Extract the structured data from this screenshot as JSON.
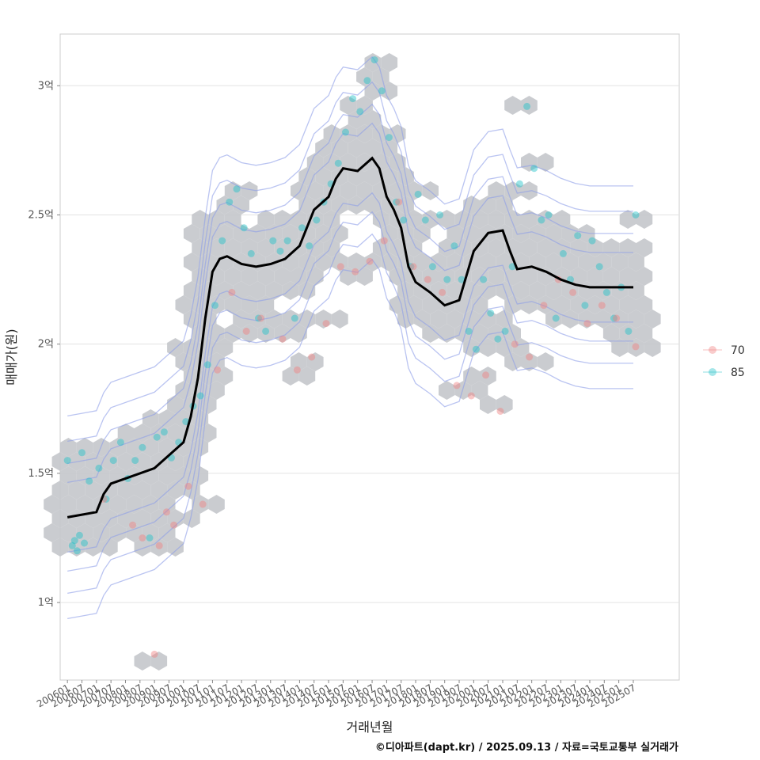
{
  "chart_data": {
    "type": "scatter",
    "xlabel": "거래년월",
    "ylabel": "매매가(원)",
    "caption": "©디아파트(dapt.kr) / 2025.09.13 / 자료=국토교통부 실거래가",
    "x_ticks": [
      "200601",
      "200607",
      "200701",
      "200707",
      "200801",
      "200807",
      "200901",
      "200907",
      "201001",
      "201007",
      "201101",
      "201107",
      "201201",
      "201207",
      "201301",
      "201307",
      "201401",
      "201407",
      "201501",
      "201507",
      "201601",
      "201607",
      "201701",
      "201707",
      "201801",
      "201807",
      "201901",
      "201907",
      "202001",
      "202007",
      "202101",
      "202107",
      "202201",
      "202207",
      "202301",
      "202307",
      "202401",
      "202407",
      "202501",
      "202507"
    ],
    "xlim": [
      "2005-10",
      "2027-02"
    ],
    "ylim": [
      0.7,
      3.2
    ],
    "y_ticks": [
      {
        "value": 1.0,
        "label": "1억"
      },
      {
        "value": 1.5,
        "label": "1.5억"
      },
      {
        "value": 2.0,
        "label": "2억"
      },
      {
        "value": 2.5,
        "label": "2.5억"
      },
      {
        "value": 3.0,
        "label": "3억"
      }
    ],
    "grid": true,
    "legend_position": "right",
    "legend": [
      {
        "name": "70",
        "color": "#F08080"
      },
      {
        "name": "85",
        "color": "#20C0C8"
      }
    ],
    "colors": {
      "hexbin": "#C4C6CB",
      "contour": "#8C9DE8",
      "trend": "#000000",
      "series_70": "#F08080",
      "series_85": "#20C0C8"
    },
    "trend_line": {
      "x": [
        "2006-01",
        "2006-07",
        "2007-01",
        "2007-04",
        "2007-07",
        "2008-01",
        "2008-07",
        "2009-01",
        "2009-07",
        "2010-01",
        "2010-04",
        "2010-07",
        "2010-10",
        "2011-01",
        "2011-04",
        "2011-07",
        "2012-01",
        "2012-07",
        "2013-01",
        "2013-07",
        "2014-01",
        "2014-07",
        "2015-01",
        "2015-04",
        "2015-07",
        "2016-01",
        "2016-07",
        "2016-10",
        "2017-01",
        "2017-04",
        "2017-07",
        "2017-10",
        "2018-01",
        "2018-07",
        "2019-01",
        "2019-07",
        "2020-01",
        "2020-07",
        "2021-01",
        "2021-04",
        "2021-07",
        "2022-01",
        "2022-07",
        "2023-01",
        "2023-07",
        "2024-01",
        "2024-07",
        "2025-01",
        "2025-07"
      ],
      "y": [
        1.33,
        1.34,
        1.35,
        1.42,
        1.46,
        1.48,
        1.5,
        1.52,
        1.57,
        1.62,
        1.72,
        1.87,
        2.1,
        2.28,
        2.33,
        2.34,
        2.31,
        2.3,
        2.31,
        2.33,
        2.38,
        2.52,
        2.57,
        2.64,
        2.68,
        2.67,
        2.72,
        2.68,
        2.57,
        2.52,
        2.45,
        2.3,
        2.24,
        2.2,
        2.15,
        2.17,
        2.36,
        2.43,
        2.44,
        2.36,
        2.29,
        2.3,
        2.28,
        2.25,
        2.23,
        2.22,
        2.22,
        2.22,
        2.22
      ]
    },
    "series": [
      {
        "name": "85",
        "x": [
          "2006-01",
          "2006-03",
          "2006-04",
          "2006-05",
          "2006-06",
          "2006-07",
          "2006-08",
          "2006-10",
          "2007-02",
          "2007-05",
          "2007-08",
          "2007-11",
          "2008-02",
          "2008-05",
          "2008-08",
          "2008-11",
          "2009-02",
          "2009-05",
          "2009-08",
          "2009-11",
          "2010-02",
          "2010-05",
          "2010-08",
          "2010-11",
          "2011-02",
          "2011-05",
          "2011-08",
          "2011-11",
          "2012-02",
          "2012-05",
          "2012-08",
          "2012-11",
          "2013-02",
          "2013-05",
          "2013-08",
          "2013-11",
          "2014-02",
          "2014-05",
          "2014-08",
          "2014-11",
          "2015-02",
          "2015-05",
          "2015-08",
          "2015-11",
          "2016-02",
          "2016-05",
          "2016-08",
          "2016-11",
          "2017-02",
          "2017-05",
          "2017-08",
          "2017-11",
          "2018-02",
          "2018-05",
          "2018-08",
          "2018-11",
          "2019-02",
          "2019-05",
          "2019-08",
          "2019-11",
          "2020-02",
          "2020-05",
          "2020-08",
          "2020-11",
          "2021-02",
          "2021-05",
          "2021-08",
          "2021-11",
          "2022-02",
          "2022-05",
          "2022-08",
          "2022-11",
          "2023-02",
          "2023-05",
          "2023-08",
          "2023-11",
          "2024-02",
          "2024-05",
          "2024-08",
          "2024-11",
          "2025-02",
          "2025-05",
          "2025-08"
        ],
        "y": [
          1.55,
          1.22,
          1.24,
          1.2,
          1.26,
          1.58,
          1.23,
          1.47,
          1.52,
          1.4,
          1.55,
          1.62,
          1.48,
          1.55,
          1.6,
          1.25,
          1.64,
          1.66,
          1.56,
          1.62,
          1.7,
          1.76,
          1.8,
          1.92,
          2.15,
          2.4,
          2.55,
          2.6,
          2.45,
          2.35,
          2.1,
          2.05,
          2.4,
          2.36,
          2.4,
          2.1,
          2.45,
          2.38,
          2.48,
          2.55,
          2.62,
          2.7,
          2.82,
          2.95,
          2.9,
          3.02,
          3.1,
          2.98,
          2.8,
          2.55,
          2.48,
          2.3,
          2.58,
          2.48,
          2.3,
          2.5,
          2.25,
          2.38,
          2.25,
          2.05,
          1.98,
          2.25,
          2.12,
          2.02,
          2.05,
          2.3,
          2.62,
          2.92,
          2.68,
          2.48,
          2.5,
          2.1,
          2.35,
          2.25,
          2.42,
          2.15,
          2.4,
          2.3,
          2.2,
          2.1,
          2.22,
          2.05,
          2.5
        ]
      },
      {
        "name": "70",
        "x": [
          "2007-04",
          "2008-04",
          "2008-08",
          "2009-01",
          "2009-03",
          "2009-06",
          "2009-09",
          "2010-03",
          "2010-09",
          "2011-03",
          "2011-09",
          "2012-03",
          "2012-09",
          "2013-06",
          "2013-12",
          "2014-06",
          "2014-12",
          "2015-06",
          "2015-12",
          "2016-06",
          "2016-12",
          "2017-06",
          "2017-12",
          "2018-06",
          "2018-12",
          "2019-06",
          "2019-12",
          "2020-06",
          "2020-12",
          "2021-06",
          "2021-12",
          "2022-06",
          "2022-12",
          "2023-06",
          "2023-12",
          "2024-06",
          "2024-12",
          "2025-08"
        ],
        "y": [
          1.4,
          1.3,
          1.25,
          0.8,
          1.22,
          1.35,
          1.3,
          1.45,
          1.38,
          1.9,
          2.2,
          2.05,
          2.1,
          2.02,
          1.9,
          1.95,
          2.08,
          2.3,
          2.28,
          2.32,
          2.4,
          2.55,
          2.3,
          2.25,
          2.2,
          1.84,
          1.8,
          1.88,
          1.74,
          2.0,
          1.95,
          2.15,
          2.25,
          2.2,
          2.08,
          2.15,
          2.1,
          1.99
        ]
      }
    ]
  }
}
